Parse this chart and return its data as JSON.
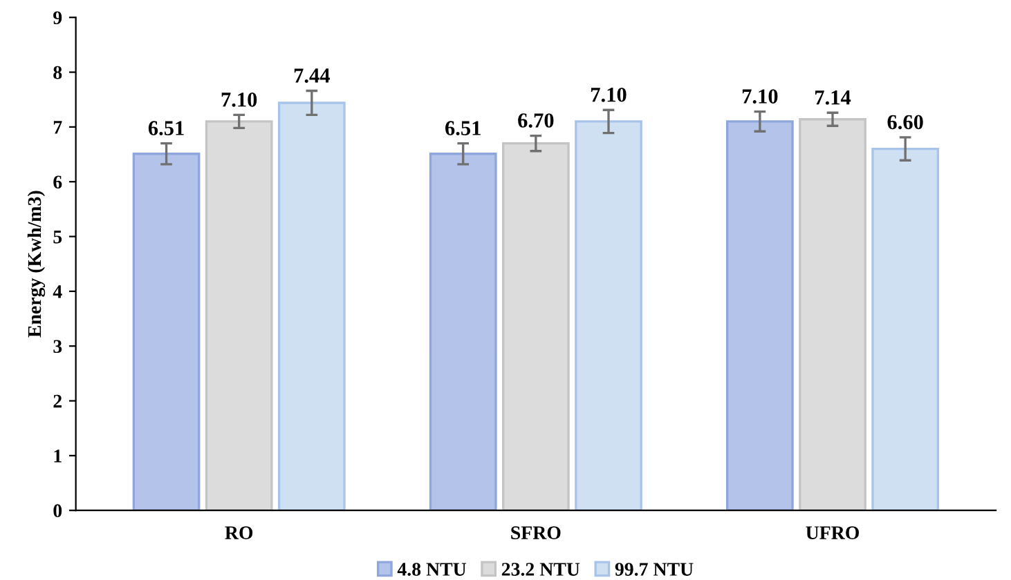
{
  "chart_data": {
    "type": "bar",
    "ylabel": "Energy (Kwh/m3)",
    "categories": [
      "RO",
      "SFRO",
      "UFRO"
    ],
    "series": [
      {
        "name": "4.8 NTU",
        "color": "#b4c3ea",
        "values": [
          6.51,
          6.51,
          7.1
        ],
        "value_labels": [
          "6.51",
          "6.51",
          "7.10"
        ],
        "errors": [
          0.19,
          0.19,
          0.18
        ]
      },
      {
        "name": "23.2 NTU",
        "color": "#dcdcdc",
        "values": [
          7.1,
          6.7,
          7.14
        ],
        "value_labels": [
          "7.10",
          "6.70",
          "7.14"
        ],
        "errors": [
          0.12,
          0.14,
          0.12
        ]
      },
      {
        "name": "99.7 NTU",
        "color": "#cfe0f3",
        "values": [
          7.44,
          7.1,
          6.6
        ],
        "value_labels": [
          "7.44",
          "7.10",
          "6.60"
        ],
        "errors": [
          0.22,
          0.21,
          0.21
        ]
      }
    ],
    "ylim": [
      0,
      9
    ],
    "yticks": [
      0,
      1,
      2,
      3,
      4,
      5,
      6,
      7,
      8,
      9
    ],
    "grid": false,
    "legend": "bottom"
  }
}
